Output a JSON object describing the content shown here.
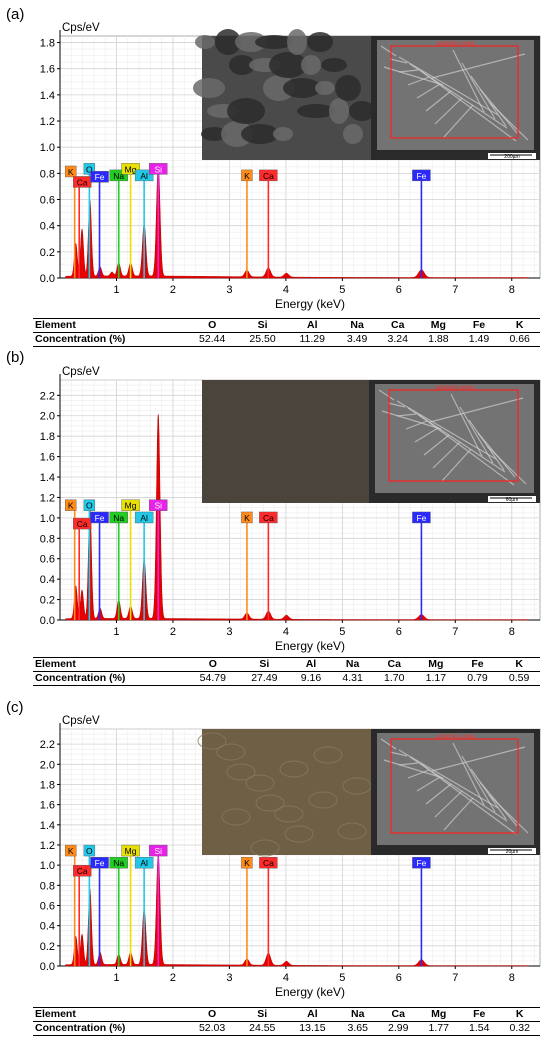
{
  "chart_data": [
    {
      "type": "line",
      "panel_label": "(a)",
      "ylabel": "Cps/eV",
      "xlabel": "Energy (keV)",
      "xlim": [
        0,
        8.5
      ],
      "ylim": [
        0,
        1.85
      ],
      "x_ticks": [
        1,
        2,
        3,
        4,
        5,
        6,
        7,
        8
      ],
      "y_ticks": [
        0.0,
        0.2,
        0.4,
        0.6,
        0.8,
        1.0,
        1.2,
        1.4,
        1.6,
        1.8
      ],
      "grid": true,
      "spectrum_peaks": [
        {
          "x": 0.28,
          "y": 0.25
        },
        {
          "x": 0.39,
          "y": 0.36
        },
        {
          "x": 0.53,
          "y": 0.58
        },
        {
          "x": 0.71,
          "y": 0.07
        },
        {
          "x": 0.92,
          "y": 0.03
        },
        {
          "x": 1.04,
          "y": 0.1
        },
        {
          "x": 1.25,
          "y": 0.1
        },
        {
          "x": 1.49,
          "y": 0.4
        },
        {
          "x": 1.74,
          "y": 0.85
        },
        {
          "x": 3.31,
          "y": 0.05
        },
        {
          "x": 3.69,
          "y": 0.07
        },
        {
          "x": 4.01,
          "y": 0.03
        },
        {
          "x": 6.4,
          "y": 0.06
        }
      ],
      "markers": [
        {
          "symbol": "K",
          "x": 0.26,
          "height": 0.78,
          "color": "#ff8c1a"
        },
        {
          "symbol": "Ca",
          "x": 0.34,
          "height": 0.7,
          "color": "#ff2a2a"
        },
        {
          "symbol": "O",
          "x": 0.52,
          "height": 0.8,
          "color": "#22c8e8"
        },
        {
          "symbol": "Fe",
          "x": 0.7,
          "height": 0.74,
          "color": "#2a2aff"
        },
        {
          "symbol": "Na",
          "x": 1.04,
          "height": 0.75,
          "color": "#22cc22"
        },
        {
          "symbol": "Mg",
          "x": 1.25,
          "height": 0.8,
          "color": "#e8e000"
        },
        {
          "symbol": "Al",
          "x": 1.49,
          "height": 0.75,
          "color": "#22c8e8"
        },
        {
          "symbol": "Si",
          "x": 1.74,
          "height": 0.8,
          "color": "#e822e8"
        },
        {
          "symbol": "K",
          "x": 3.31,
          "height": 0.75,
          "color": "#ff8c1a"
        },
        {
          "symbol": "Ca",
          "x": 3.69,
          "height": 0.75,
          "color": "#ff2a2a"
        },
        {
          "symbol": "Fe",
          "x": 6.4,
          "height": 0.75,
          "color": "#2a2aff"
        }
      ],
      "inset_scale_bar": "200µm",
      "inset_area_label": "analysis area",
      "table": {
        "header": [
          "Element",
          "O",
          "Si",
          "Al",
          "Na",
          "Ca",
          "Mg",
          "Fe",
          "K"
        ],
        "values": [
          "Concentration (%)",
          "52.44",
          "25.50",
          "11.29",
          "3.49",
          "3.24",
          "1.88",
          "1.49",
          "0.66"
        ]
      }
    },
    {
      "type": "line",
      "panel_label": "(b)",
      "ylabel": "Cps/eV",
      "xlabel": "Energy (keV)",
      "xlim": [
        0,
        8.5
      ],
      "ylim": [
        0,
        2.35
      ],
      "x_ticks": [
        1,
        2,
        3,
        4,
        5,
        6,
        7,
        8
      ],
      "y_ticks": [
        0.0,
        0.2,
        0.4,
        0.6,
        0.8,
        1.0,
        1.2,
        1.4,
        1.6,
        1.8,
        2.0,
        2.2
      ],
      "grid": true,
      "spectrum_peaks": [
        {
          "x": 0.28,
          "y": 0.32
        },
        {
          "x": 0.39,
          "y": 0.28
        },
        {
          "x": 0.53,
          "y": 1.1
        },
        {
          "x": 0.71,
          "y": 0.1
        },
        {
          "x": 1.04,
          "y": 0.18
        },
        {
          "x": 1.25,
          "y": 0.12
        },
        {
          "x": 1.49,
          "y": 0.58
        },
        {
          "x": 1.74,
          "y": 2.0
        },
        {
          "x": 3.31,
          "y": 0.06
        },
        {
          "x": 3.69,
          "y": 0.08
        },
        {
          "x": 4.01,
          "y": 0.04
        },
        {
          "x": 6.4,
          "y": 0.05
        }
      ],
      "markers": [
        {
          "symbol": "K",
          "x": 0.26,
          "height": 1.08,
          "color": "#ff8c1a"
        },
        {
          "symbol": "Ca",
          "x": 0.34,
          "height": 0.9,
          "color": "#ff2a2a"
        },
        {
          "symbol": "O",
          "x": 0.52,
          "height": 1.08,
          "color": "#22c8e8"
        },
        {
          "symbol": "Fe",
          "x": 0.7,
          "height": 0.96,
          "color": "#2a2aff"
        },
        {
          "symbol": "Na",
          "x": 1.04,
          "height": 0.96,
          "color": "#22cc22"
        },
        {
          "symbol": "Mg",
          "x": 1.25,
          "height": 1.08,
          "color": "#e8e000"
        },
        {
          "symbol": "Al",
          "x": 1.49,
          "height": 0.96,
          "color": "#22c8e8"
        },
        {
          "symbol": "Si",
          "x": 1.74,
          "height": 1.08,
          "color": "#e822e8"
        },
        {
          "symbol": "K",
          "x": 3.31,
          "height": 0.96,
          "color": "#ff8c1a"
        },
        {
          "symbol": "Ca",
          "x": 3.69,
          "height": 0.96,
          "color": "#ff2a2a"
        },
        {
          "symbol": "Fe",
          "x": 6.4,
          "height": 0.96,
          "color": "#2a2aff"
        }
      ],
      "inset_scale_bar": "60µm",
      "inset_area_label": "analysis area",
      "table": {
        "header": [
          "Element",
          "O",
          "Si",
          "Al",
          "Na",
          "Ca",
          "Mg",
          "Fe",
          "K"
        ],
        "values": [
          "Concentration (%)",
          "54.79",
          "27.49",
          "9.16",
          "4.31",
          "1.70",
          "1.17",
          "0.79",
          "0.59"
        ]
      }
    },
    {
      "type": "line",
      "panel_label": "(c)",
      "ylabel": "Cps/eV",
      "xlabel": "Energy (keV)",
      "xlim": [
        0,
        8.5
      ],
      "ylim": [
        0,
        2.35
      ],
      "x_ticks": [
        1,
        2,
        3,
        4,
        5,
        6,
        7,
        8
      ],
      "y_ticks": [
        0.0,
        0.2,
        0.4,
        0.6,
        0.8,
        1.0,
        1.2,
        1.4,
        1.6,
        1.8,
        2.0,
        2.2
      ],
      "grid": true,
      "spectrum_peaks": [
        {
          "x": 0.28,
          "y": 0.28
        },
        {
          "x": 0.39,
          "y": 0.3
        },
        {
          "x": 0.53,
          "y": 0.75
        },
        {
          "x": 0.71,
          "y": 0.12
        },
        {
          "x": 1.04,
          "y": 0.1
        },
        {
          "x": 1.25,
          "y": 0.12
        },
        {
          "x": 1.49,
          "y": 0.55
        },
        {
          "x": 1.74,
          "y": 1.1
        },
        {
          "x": 3.31,
          "y": 0.06
        },
        {
          "x": 3.69,
          "y": 0.12
        },
        {
          "x": 4.01,
          "y": 0.04
        },
        {
          "x": 6.4,
          "y": 0.06
        }
      ],
      "markers": [
        {
          "symbol": "K",
          "x": 0.26,
          "height": 1.1,
          "color": "#ff8c1a"
        },
        {
          "symbol": "Ca",
          "x": 0.34,
          "height": 0.9,
          "color": "#ff2a2a"
        },
        {
          "symbol": "O",
          "x": 0.52,
          "height": 1.1,
          "color": "#22c8e8"
        },
        {
          "symbol": "Fe",
          "x": 0.7,
          "height": 0.98,
          "color": "#2a2aff"
        },
        {
          "symbol": "Na",
          "x": 1.04,
          "height": 0.98,
          "color": "#22cc22"
        },
        {
          "symbol": "Mg",
          "x": 1.25,
          "height": 1.1,
          "color": "#e8e000"
        },
        {
          "symbol": "Al",
          "x": 1.49,
          "height": 0.98,
          "color": "#22c8e8"
        },
        {
          "symbol": "Si",
          "x": 1.74,
          "height": 1.1,
          "color": "#e822e8"
        },
        {
          "symbol": "K",
          "x": 3.31,
          "height": 0.98,
          "color": "#ff8c1a"
        },
        {
          "symbol": "Ca",
          "x": 3.69,
          "height": 0.98,
          "color": "#ff2a2a"
        },
        {
          "symbol": "Fe",
          "x": 6.4,
          "height": 0.98,
          "color": "#2a2aff"
        }
      ],
      "inset_scale_bar": "20µm",
      "inset_area_label": "analysis area",
      "table": {
        "header": [
          "Element",
          "O",
          "Si",
          "Al",
          "Na",
          "Ca",
          "Mg",
          "Fe",
          "K"
        ],
        "values": [
          "Concentration (%)",
          "52.03",
          "24.55",
          "13.15",
          "3.65",
          "2.99",
          "1.77",
          "1.54",
          "0.32"
        ]
      }
    }
  ]
}
